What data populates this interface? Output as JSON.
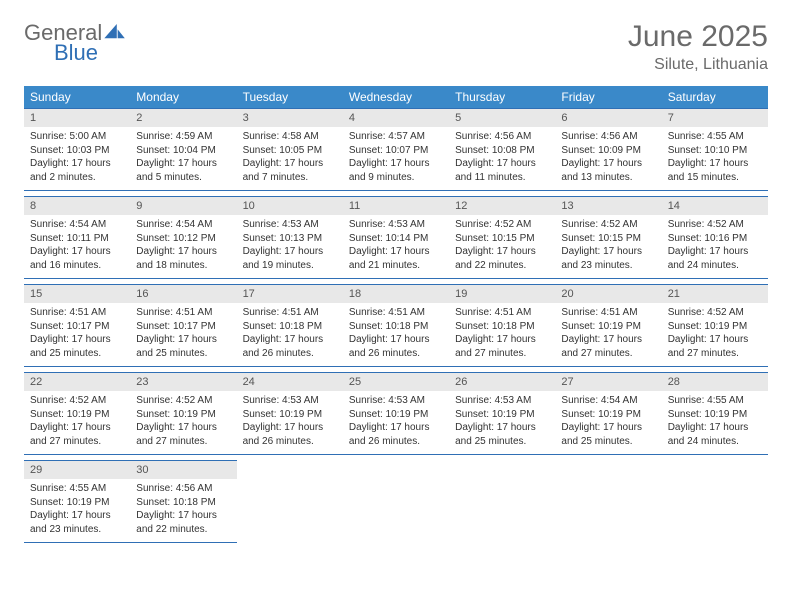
{
  "brand": {
    "word1": "General",
    "word2": "Blue"
  },
  "title": "June 2025",
  "location": "Silute, Lithuania",
  "colors": {
    "header_bg": "#3a89c9",
    "header_text": "#ffffff",
    "border": "#2f6fb5",
    "daynum_bg": "#e8e8e8",
    "body_text": "#333333",
    "title_text": "#6a6a6a"
  },
  "calendar": {
    "day_headers": [
      "Sunday",
      "Monday",
      "Tuesday",
      "Wednesday",
      "Thursday",
      "Friday",
      "Saturday"
    ],
    "weeks": [
      [
        {
          "day": "1",
          "sunrise": "Sunrise: 5:00 AM",
          "sunset": "Sunset: 10:03 PM",
          "daylight1": "Daylight: 17 hours",
          "daylight2": "and 2 minutes."
        },
        {
          "day": "2",
          "sunrise": "Sunrise: 4:59 AM",
          "sunset": "Sunset: 10:04 PM",
          "daylight1": "Daylight: 17 hours",
          "daylight2": "and 5 minutes."
        },
        {
          "day": "3",
          "sunrise": "Sunrise: 4:58 AM",
          "sunset": "Sunset: 10:05 PM",
          "daylight1": "Daylight: 17 hours",
          "daylight2": "and 7 minutes."
        },
        {
          "day": "4",
          "sunrise": "Sunrise: 4:57 AM",
          "sunset": "Sunset: 10:07 PM",
          "daylight1": "Daylight: 17 hours",
          "daylight2": "and 9 minutes."
        },
        {
          "day": "5",
          "sunrise": "Sunrise: 4:56 AM",
          "sunset": "Sunset: 10:08 PM",
          "daylight1": "Daylight: 17 hours",
          "daylight2": "and 11 minutes."
        },
        {
          "day": "6",
          "sunrise": "Sunrise: 4:56 AM",
          "sunset": "Sunset: 10:09 PM",
          "daylight1": "Daylight: 17 hours",
          "daylight2": "and 13 minutes."
        },
        {
          "day": "7",
          "sunrise": "Sunrise: 4:55 AM",
          "sunset": "Sunset: 10:10 PM",
          "daylight1": "Daylight: 17 hours",
          "daylight2": "and 15 minutes."
        }
      ],
      [
        {
          "day": "8",
          "sunrise": "Sunrise: 4:54 AM",
          "sunset": "Sunset: 10:11 PM",
          "daylight1": "Daylight: 17 hours",
          "daylight2": "and 16 minutes."
        },
        {
          "day": "9",
          "sunrise": "Sunrise: 4:54 AM",
          "sunset": "Sunset: 10:12 PM",
          "daylight1": "Daylight: 17 hours",
          "daylight2": "and 18 minutes."
        },
        {
          "day": "10",
          "sunrise": "Sunrise: 4:53 AM",
          "sunset": "Sunset: 10:13 PM",
          "daylight1": "Daylight: 17 hours",
          "daylight2": "and 19 minutes."
        },
        {
          "day": "11",
          "sunrise": "Sunrise: 4:53 AM",
          "sunset": "Sunset: 10:14 PM",
          "daylight1": "Daylight: 17 hours",
          "daylight2": "and 21 minutes."
        },
        {
          "day": "12",
          "sunrise": "Sunrise: 4:52 AM",
          "sunset": "Sunset: 10:15 PM",
          "daylight1": "Daylight: 17 hours",
          "daylight2": "and 22 minutes."
        },
        {
          "day": "13",
          "sunrise": "Sunrise: 4:52 AM",
          "sunset": "Sunset: 10:15 PM",
          "daylight1": "Daylight: 17 hours",
          "daylight2": "and 23 minutes."
        },
        {
          "day": "14",
          "sunrise": "Sunrise: 4:52 AM",
          "sunset": "Sunset: 10:16 PM",
          "daylight1": "Daylight: 17 hours",
          "daylight2": "and 24 minutes."
        }
      ],
      [
        {
          "day": "15",
          "sunrise": "Sunrise: 4:51 AM",
          "sunset": "Sunset: 10:17 PM",
          "daylight1": "Daylight: 17 hours",
          "daylight2": "and 25 minutes."
        },
        {
          "day": "16",
          "sunrise": "Sunrise: 4:51 AM",
          "sunset": "Sunset: 10:17 PM",
          "daylight1": "Daylight: 17 hours",
          "daylight2": "and 25 minutes."
        },
        {
          "day": "17",
          "sunrise": "Sunrise: 4:51 AM",
          "sunset": "Sunset: 10:18 PM",
          "daylight1": "Daylight: 17 hours",
          "daylight2": "and 26 minutes."
        },
        {
          "day": "18",
          "sunrise": "Sunrise: 4:51 AM",
          "sunset": "Sunset: 10:18 PM",
          "daylight1": "Daylight: 17 hours",
          "daylight2": "and 26 minutes."
        },
        {
          "day": "19",
          "sunrise": "Sunrise: 4:51 AM",
          "sunset": "Sunset: 10:18 PM",
          "daylight1": "Daylight: 17 hours",
          "daylight2": "and 27 minutes."
        },
        {
          "day": "20",
          "sunrise": "Sunrise: 4:51 AM",
          "sunset": "Sunset: 10:19 PM",
          "daylight1": "Daylight: 17 hours",
          "daylight2": "and 27 minutes."
        },
        {
          "day": "21",
          "sunrise": "Sunrise: 4:52 AM",
          "sunset": "Sunset: 10:19 PM",
          "daylight1": "Daylight: 17 hours",
          "daylight2": "and 27 minutes."
        }
      ],
      [
        {
          "day": "22",
          "sunrise": "Sunrise: 4:52 AM",
          "sunset": "Sunset: 10:19 PM",
          "daylight1": "Daylight: 17 hours",
          "daylight2": "and 27 minutes."
        },
        {
          "day": "23",
          "sunrise": "Sunrise: 4:52 AM",
          "sunset": "Sunset: 10:19 PM",
          "daylight1": "Daylight: 17 hours",
          "daylight2": "and 27 minutes."
        },
        {
          "day": "24",
          "sunrise": "Sunrise: 4:53 AM",
          "sunset": "Sunset: 10:19 PM",
          "daylight1": "Daylight: 17 hours",
          "daylight2": "and 26 minutes."
        },
        {
          "day": "25",
          "sunrise": "Sunrise: 4:53 AM",
          "sunset": "Sunset: 10:19 PM",
          "daylight1": "Daylight: 17 hours",
          "daylight2": "and 26 minutes."
        },
        {
          "day": "26",
          "sunrise": "Sunrise: 4:53 AM",
          "sunset": "Sunset: 10:19 PM",
          "daylight1": "Daylight: 17 hours",
          "daylight2": "and 25 minutes."
        },
        {
          "day": "27",
          "sunrise": "Sunrise: 4:54 AM",
          "sunset": "Sunset: 10:19 PM",
          "daylight1": "Daylight: 17 hours",
          "daylight2": "and 25 minutes."
        },
        {
          "day": "28",
          "sunrise": "Sunrise: 4:55 AM",
          "sunset": "Sunset: 10:19 PM",
          "daylight1": "Daylight: 17 hours",
          "daylight2": "and 24 minutes."
        }
      ],
      [
        {
          "day": "29",
          "sunrise": "Sunrise: 4:55 AM",
          "sunset": "Sunset: 10:19 PM",
          "daylight1": "Daylight: 17 hours",
          "daylight2": "and 23 minutes."
        },
        {
          "day": "30",
          "sunrise": "Sunrise: 4:56 AM",
          "sunset": "Sunset: 10:18 PM",
          "daylight1": "Daylight: 17 hours",
          "daylight2": "and 22 minutes."
        },
        null,
        null,
        null,
        null,
        null
      ]
    ]
  }
}
